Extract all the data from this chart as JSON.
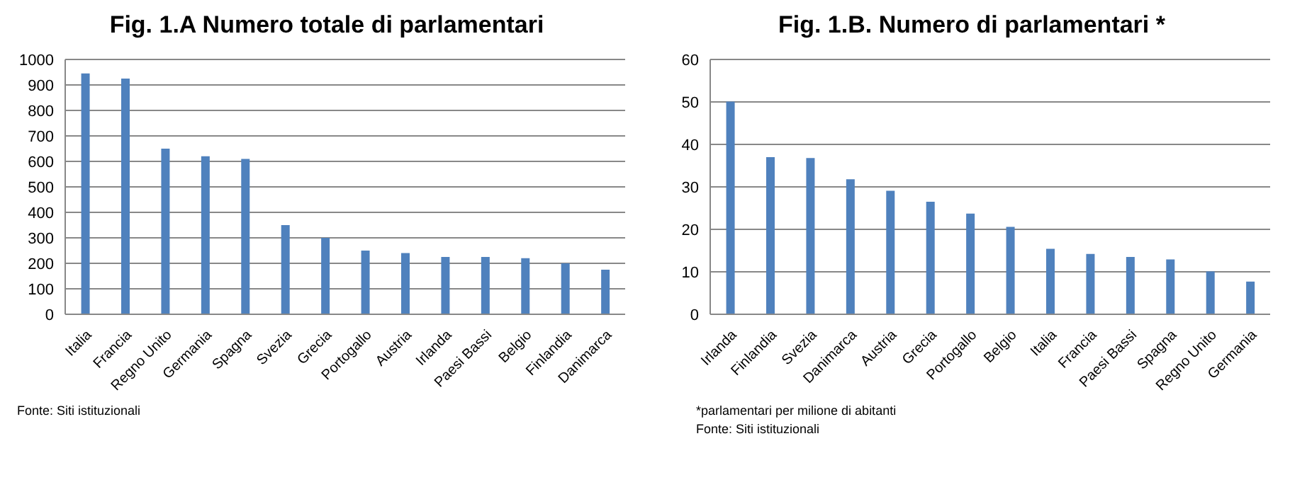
{
  "chart_data": [
    {
      "type": "bar",
      "title": "Fig. 1.A Numero totale di parlamentari",
      "categories": [
        "Italia",
        "Francia",
        "Regno Unito",
        "Germania",
        "Spagna",
        "Svezia",
        "Grecia",
        "Portogallo",
        "Austria",
        "Irlanda",
        "Paesi Bassi",
        "Belgio",
        "Finlandia",
        "Danimarca"
      ],
      "values": [
        945,
        925,
        650,
        620,
        610,
        350,
        300,
        250,
        240,
        225,
        225,
        220,
        200,
        175
      ],
      "color": "#4f81bd",
      "ylim": [
        0,
        1000
      ],
      "yticks": [
        0,
        100,
        200,
        300,
        400,
        500,
        600,
        700,
        800,
        900,
        1000
      ],
      "grid": "y",
      "annotations": [
        "Fonte: Siti istituzionali"
      ]
    },
    {
      "type": "bar",
      "title": "Fig. 1.B. Numero di parlamentari *",
      "categories": [
        "Irlanda",
        "Finlandia",
        "Svezia",
        "Danimarca",
        "Austria",
        "Grecia",
        "Portogallo",
        "Belgio",
        "Italia",
        "Francia",
        "Paesi Bassi",
        "Spagna",
        "Regno Unito",
        "Germania"
      ],
      "values": [
        50.1,
        37,
        36.8,
        31.8,
        29.1,
        26.5,
        23.7,
        20.6,
        15.4,
        14.2,
        13.5,
        12.9,
        10.1,
        7.7
      ],
      "color": "#4f81bd",
      "ylim": [
        0,
        60
      ],
      "yticks": [
        0,
        10,
        20,
        30,
        40,
        50,
        60
      ],
      "grid": "y",
      "annotations": [
        "*parlamentari per milione di abitanti",
        "Fonte: Siti istituzionali"
      ]
    }
  ]
}
